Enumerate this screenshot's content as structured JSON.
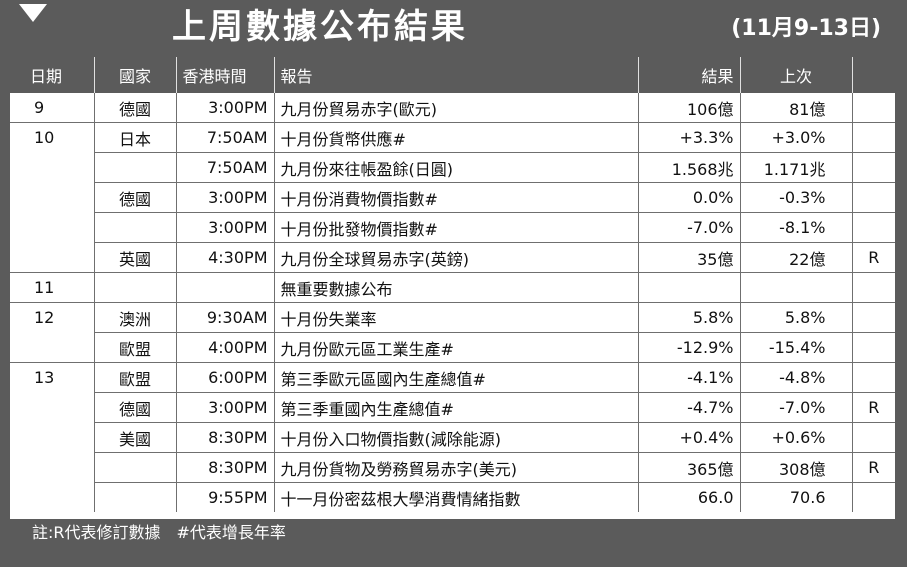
{
  "header": {
    "title": "上周數據公布結果",
    "date_range": "(11月9-13日)"
  },
  "table": {
    "columns": [
      "日期",
      "國家",
      "香港時間",
      "報告",
      "結果",
      "上次",
      ""
    ],
    "rows": [
      {
        "day": "9",
        "country": "德國",
        "time": "3:00PM",
        "report": "九月份貿易赤字(歐元)",
        "result": "106億",
        "previous": "81億",
        "flag": ""
      },
      {
        "day": "10",
        "country": "日本",
        "time": "7:50AM",
        "report": "十月份貨幣供應#",
        "result": "+3.3%",
        "previous": "+3.0%",
        "flag": ""
      },
      {
        "day": "",
        "country": "",
        "time": "7:50AM",
        "report": "九月份來往帳盈餘(日圓)",
        "result": "1.568兆",
        "previous": "1.171兆",
        "flag": ""
      },
      {
        "day": "",
        "country": "德國",
        "time": "3:00PM",
        "report": "十月份消費物價指數#",
        "result": "0.0%",
        "previous": "-0.3%",
        "flag": ""
      },
      {
        "day": "",
        "country": "",
        "time": "3:00PM",
        "report": "十月份批發物價指數#",
        "result": "-7.0%",
        "previous": "-8.1%",
        "flag": ""
      },
      {
        "day": "",
        "country": "英國",
        "time": "4:30PM",
        "report": "九月份全球貿易赤字(英鎊)",
        "result": "35億",
        "previous": "22億",
        "flag": "R"
      },
      {
        "day": "11",
        "country": "",
        "time": "",
        "report": "無重要數據公布",
        "result": "",
        "previous": "",
        "flag": ""
      },
      {
        "day": "12",
        "country": "澳洲",
        "time": "9:30AM",
        "report": "十月份失業率",
        "result": "5.8%",
        "previous": "5.8%",
        "flag": ""
      },
      {
        "day": "",
        "country": "歐盟",
        "time": "4:00PM",
        "report": "九月份歐元區工業生產#",
        "result": "-12.9%",
        "previous": "-15.4%",
        "flag": ""
      },
      {
        "day": "13",
        "country": "歐盟",
        "time": "6:00PM",
        "report": "第三季歐元區國內生產總值#",
        "result": "-4.1%",
        "previous": "-4.8%",
        "flag": ""
      },
      {
        "day": "",
        "country": "德國",
        "time": "3:00PM",
        "report": "第三季重國內生產總值#",
        "result": "-4.7%",
        "previous": "-7.0%",
        "flag": "R"
      },
      {
        "day": "",
        "country": "美國",
        "time": "8:30PM",
        "report": "十月份入口物價指數(減除能源)",
        "result": "+0.4%",
        "previous": "+0.6%",
        "flag": ""
      },
      {
        "day": "",
        "country": "",
        "time": "8:30PM",
        "report": "九月份貨物及勞務貿易赤字(美元)",
        "result": "365億",
        "previous": "308億",
        "flag": "R"
      },
      {
        "day": "",
        "country": "",
        "time": "9:55PM",
        "report": "十一月份密茲根大學消費情緒指數",
        "result": "66.0",
        "previous": "70.6",
        "flag": ""
      }
    ]
  },
  "footer": {
    "note": "註:R代表修訂數據　#代表增長年率"
  }
}
